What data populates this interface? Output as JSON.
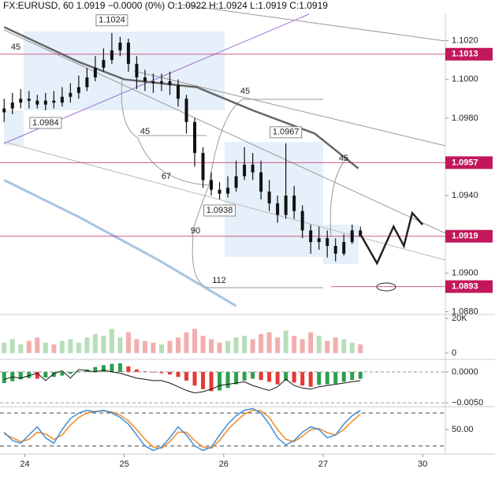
{
  "chart_data": {
    "type": "candlestick",
    "title": "FX:EURUSD, 60  1.0919 −0.0000 (0%) O:1.0922 H:1.0924 L:1.0919 C:1.0919",
    "x": [
      -5,
      -3,
      -1,
      1,
      3,
      5,
      7,
      9,
      11,
      13,
      15,
      17,
      19,
      21,
      23,
      25,
      27,
      29,
      31,
      33,
      35,
      37,
      39,
      41,
      43,
      45,
      47,
      49,
      51,
      53,
      55,
      57,
      59,
      61,
      63,
      65,
      67,
      69,
      71,
      73,
      75,
      77,
      79,
      81
    ],
    "open": [
      1.0983,
      1.0985,
      1.0988,
      1.099,
      1.0989,
      1.0987,
      1.0989,
      1.0988,
      1.0991,
      1.0993,
      1.0996,
      1.1001,
      1.1006,
      1.101,
      1.1015,
      1.1019,
      1.1008,
      1.1001,
      1.0999,
      1.0998,
      1.0999,
      1.0997,
      1.099,
      1.0978,
      1.0962,
      1.0948,
      1.0943,
      1.0941,
      1.0944,
      1.095,
      1.0956,
      1.0952,
      1.0942,
      1.0936,
      1.093,
      1.094,
      1.0932,
      1.0922,
      1.0916,
      1.0918,
      1.0914,
      1.091,
      1.0916,
      1.0922
    ],
    "high": [
      1.099,
      1.0993,
      1.0995,
      1.0994,
      1.0992,
      1.0993,
      1.0994,
      1.0996,
      1.0998,
      1.1002,
      1.1006,
      1.1012,
      1.1016,
      1.1024,
      1.1022,
      1.1021,
      1.1012,
      1.1005,
      1.1003,
      1.1003,
      1.1004,
      1.1,
      1.0992,
      1.098,
      1.0965,
      1.0952,
      1.0947,
      1.095,
      1.0958,
      1.0965,
      1.0962,
      1.0958,
      1.0948,
      1.094,
      1.0967,
      1.0945,
      1.0935,
      1.0925,
      1.0924,
      1.0922,
      1.0918,
      1.092,
      1.0925,
      1.0924
    ],
    "low": [
      1.0978,
      1.0982,
      1.0985,
      1.0985,
      1.0985,
      1.0984,
      1.0985,
      1.0986,
      1.0988,
      1.099,
      1.0994,
      1.0999,
      1.1004,
      1.1008,
      1.1012,
      1.1004,
      1.0995,
      1.0994,
      1.0993,
      1.0994,
      1.0992,
      1.0986,
      1.0972,
      1.0955,
      1.0944,
      1.094,
      1.0938,
      1.0939,
      1.0942,
      1.0948,
      1.0948,
      1.0938,
      1.0932,
      1.0926,
      1.0928,
      1.0928,
      1.0918,
      1.091,
      1.0912,
      1.0908,
      1.0906,
      1.0909,
      1.0915,
      1.0919
    ],
    "close": [
      1.0985,
      1.0988,
      1.099,
      1.0989,
      1.0987,
      1.0989,
      1.0988,
      1.0991,
      1.0993,
      1.0996,
      1.1001,
      1.1006,
      1.101,
      1.1015,
      1.1019,
      1.1008,
      1.1001,
      1.0999,
      1.0998,
      1.0999,
      1.0997,
      1.099,
      1.0978,
      1.0962,
      1.0948,
      1.0943,
      1.0941,
      1.0944,
      1.095,
      1.0956,
      1.0952,
      1.0942,
      1.0936,
      1.093,
      1.094,
      1.0932,
      1.0922,
      1.0916,
      1.0918,
      1.0914,
      1.091,
      1.0916,
      1.0922,
      1.0919
    ],
    "candle_color": "#111111",
    "xlim": [
      -6,
      101.5
    ],
    "xticks": [
      {
        "value": 0,
        "label": "24"
      },
      {
        "value": 24,
        "label": "25"
      },
      {
        "value": 48,
        "label": "26"
      },
      {
        "value": 72,
        "label": "27"
      },
      {
        "value": 96,
        "label": "30"
      }
    ],
    "ylim": [
      1.0879,
      1.1041
    ],
    "yticks": [
      {
        "value": 1.102,
        "label": "1.1020"
      },
      {
        "value": 1.1,
        "label": "1.1000"
      },
      {
        "value": 1.098,
        "label": "1.0980"
      },
      {
        "value": 1.094,
        "label": "1.0940"
      },
      {
        "value": 1.09,
        "label": "1.0900"
      },
      {
        "value": 1.088,
        "label": "1.0880"
      }
    ],
    "levels": [
      1.1013,
      1.0957,
      1.0919,
      1.0893
    ],
    "level_color": "#c2185b",
    "annotations": [
      1.1024,
      1.0984,
      1.0967,
      1.0938
    ],
    "fib_labels": [
      "45",
      "45",
      "45",
      "67",
      "90",
      "112",
      "45"
    ],
    "moving_averages": [
      {
        "color": "#666666",
        "x": [
          -5,
          13,
          24,
          41.5,
          55,
          70,
          80.5
        ],
        "values": [
          1.1027,
          1.1009,
          1.1,
          1.0996,
          1.0984,
          1.0972,
          1.0954
        ]
      },
      {
        "color": "#a9c4e0",
        "x": [
          -5,
          13,
          32,
          51
        ],
        "values": [
          1.0948,
          1.0929,
          1.0907,
          1.0883
        ]
      }
    ],
    "projection": {
      "color": "#222222",
      "x": [
        81,
        85,
        89,
        91.5,
        93.5,
        96
      ],
      "values": [
        1.092,
        1.0905,
        1.0924,
        1.0914,
        1.0931,
        1.0925
      ]
    },
    "volume": {
      "values": [
        6000,
        8000,
        5000,
        7000,
        9000,
        6000,
        5000,
        7000,
        8000,
        6000,
        9000,
        11000,
        10000,
        14000,
        9000,
        12000,
        8000,
        7000,
        6000,
        5000,
        7000,
        9000,
        12000,
        14000,
        10000,
        8000,
        6000,
        7000,
        9000,
        10000,
        8000,
        11000,
        12000,
        9000,
        13000,
        10000,
        8000,
        12000,
        10000,
        7000,
        9000,
        8000,
        6000,
        5000
      ],
      "ylim": [
        -3200,
        21800
      ],
      "yticks": [
        {
          "value": 20000,
          "label": "20K"
        },
        0
      ],
      "colors": [
        "#a5d6a7",
        "#ef9a9a"
      ]
    },
    "macd": {
      "histogram": [
        -0.0018,
        -0.0015,
        -0.0012,
        -0.001,
        -0.0011,
        -0.0009,
        -0.0008,
        -0.0006,
        -0.0003,
        0.0001,
        0.0004,
        0.0008,
        0.0011,
        0.0013,
        0.0014,
        0.0009,
        0.0004,
        0.0001,
        -0.0001,
        -0.0002,
        -0.0004,
        -0.0008,
        -0.0014,
        -0.0022,
        -0.0028,
        -0.0031,
        -0.003,
        -0.0026,
        -0.002,
        -0.0014,
        -0.0011,
        -0.0013,
        -0.0016,
        -0.002,
        -0.0014,
        -0.0017,
        -0.0022,
        -0.0024,
        -0.0021,
        -0.002,
        -0.0019,
        -0.0016,
        -0.0013,
        -0.0011
      ],
      "line": [
        -0.0012,
        -0.0008,
        -0.001,
        -0.0006,
        -0.0002,
        -0.0014,
        -0.0003,
        0.0002,
        -0.001,
        0.0004,
        0.0002,
        0.0,
        0.0003,
        0.0,
        -0.0002,
        -0.0006,
        -0.001,
        -0.0012,
        -0.0014,
        -0.0014,
        -0.0018,
        -0.0024,
        -0.003,
        -0.0034,
        -0.0032,
        -0.0028,
        -0.0022,
        -0.002,
        -0.0018,
        -0.0016,
        -0.0022,
        -0.0026,
        -0.003,
        -0.0024,
        -0.0012,
        -0.0022,
        -0.0026,
        -0.0028,
        -0.0024,
        -0.0022,
        -0.002,
        -0.0018,
        -0.0016,
        -0.0014
      ],
      "ylim": [
        -0.0055,
        0.0019
      ],
      "yticks": [
        {
          "value": 0,
          "label": "0.0000"
        },
        {
          "value": -0.005,
          "label": "−0.0050"
        }
      ],
      "colors": [
        "#2e9e4f",
        "#e53935"
      ],
      "line_color": "#111111"
    },
    "stoch": {
      "k": [
        45,
        30,
        25,
        40,
        55,
        35,
        25,
        50,
        70,
        80,
        85,
        82,
        85,
        80,
        72,
        60,
        40,
        20,
        12,
        18,
        35,
        55,
        40,
        20,
        12,
        18,
        40,
        60,
        75,
        85,
        88,
        80,
        60,
        35,
        22,
        30,
        45,
        55,
        50,
        35,
        40,
        60,
        75,
        85
      ],
      "d": [
        42,
        35,
        28,
        32,
        45,
        42,
        32,
        40,
        58,
        72,
        80,
        83,
        84,
        82,
        76,
        66,
        50,
        32,
        18,
        16,
        28,
        45,
        45,
        30,
        18,
        16,
        30,
        50,
        65,
        78,
        85,
        84,
        72,
        50,
        32,
        28,
        38,
        50,
        52,
        44,
        40,
        50,
        65,
        78
      ],
      "k_color": "#3d8fd6",
      "d_color": "#f08a24",
      "ylim": [
        7,
        90
      ],
      "yticks": [
        {
          "value": 50,
          "label": "50.00"
        }
      ],
      "levels": [
        80,
        20
      ]
    }
  }
}
